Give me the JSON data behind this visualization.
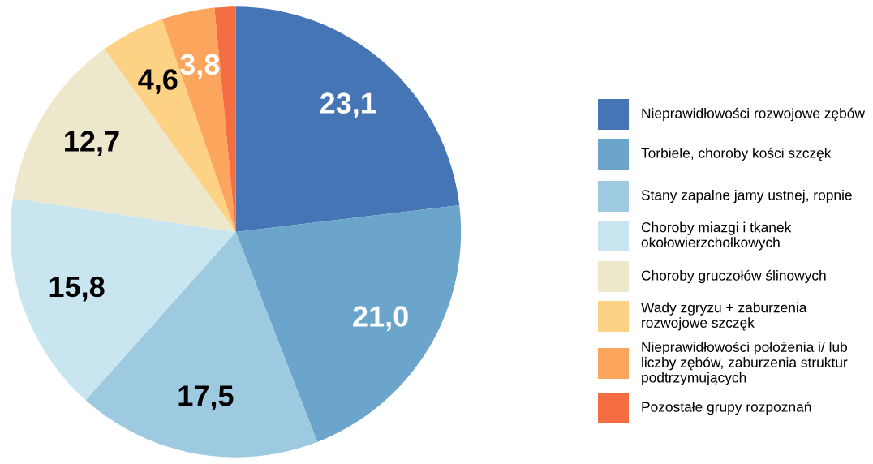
{
  "chart_data": {
    "type": "pie",
    "categories": [
      "Nieprawidłowości rozwojowe zębów",
      "Torbiele, choroby kości szczęk",
      "Stany zapalne jamy ustnej, ropnie",
      "Choroby miazgi i tkanek okołowierzchołkowych",
      "Choroby gruczołów ślinowych",
      "Wady zgryzu + zaburzenia rozwojowe szczęk",
      "Nieprawidłowości położenia i/ lub liczby zębów, zaburzenia struktur podtrzymujących",
      "Pozostałe grupy rozpoznań"
    ],
    "values": [
      23.1,
      21.0,
      17.5,
      15.8,
      12.7,
      4.6,
      3.8,
      1.5
    ],
    "value_labels": [
      "23,1",
      "21,0",
      "17,5",
      "15,8",
      "12,7",
      "4,6",
      "3,8",
      null
    ],
    "colors": [
      "#4575b4",
      "#6ba5cc",
      "#9ecae1",
      "#c8e5f0",
      "#ede8cb",
      "#fdd284",
      "#fca55d",
      "#f46d43"
    ],
    "legend": "right"
  }
}
